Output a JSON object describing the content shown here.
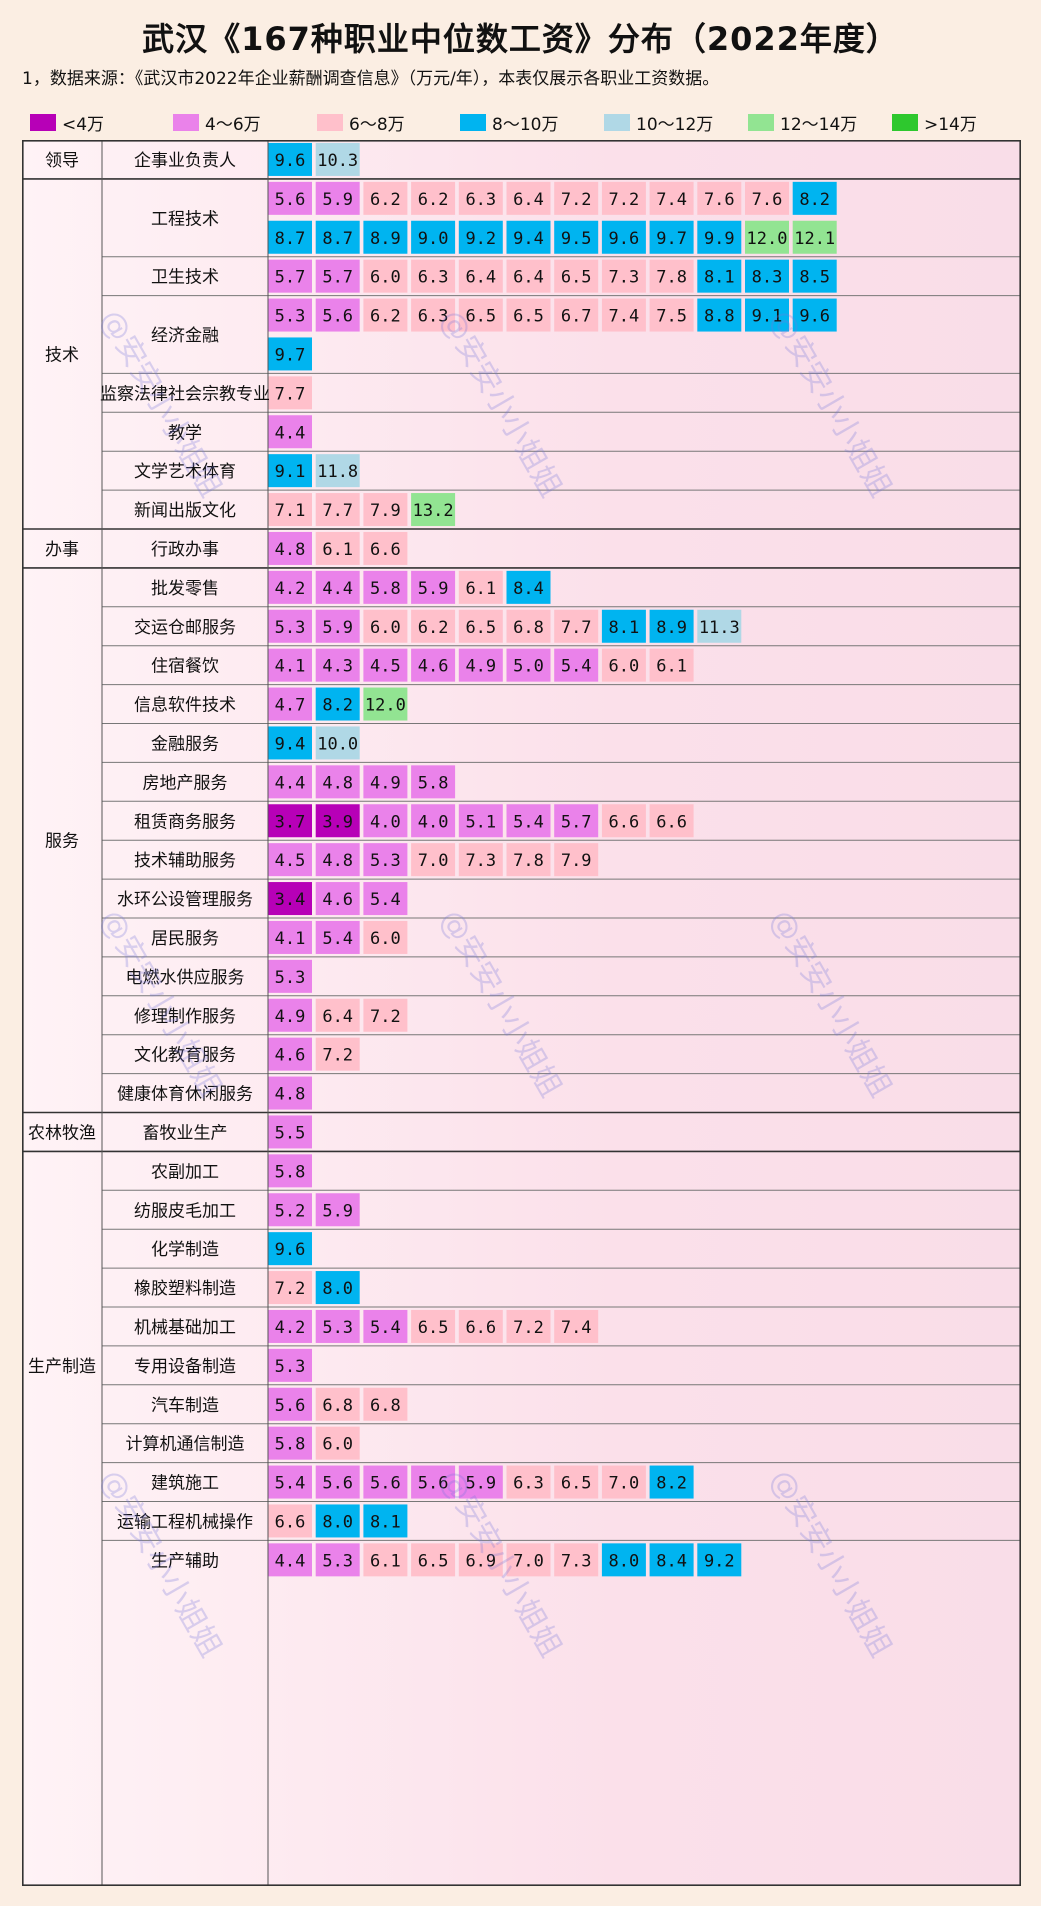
{
  "chart_data": {
    "type": "table",
    "title": "武汉《167种职业中位数工资》分布（2022年度）",
    "note": "1，数据来源：《武汉市2022年企业薪酬调查信息》（万元/年），本表仅展示各职业工资数据。",
    "legend": [
      {
        "label": "<4万",
        "color": "#b700b7"
      },
      {
        "label": "4～6万",
        "color": "#ea82ea"
      },
      {
        "label": "6～8万",
        "color": "#ffc0cb"
      },
      {
        "label": "8～10万",
        "color": "#00b4f0"
      },
      {
        "label": "10～12万",
        "color": "#b0d8e6"
      },
      {
        "label": "12～14万",
        "color": "#92e492"
      },
      {
        "label": ">14万",
        "color": "#2ec82e"
      }
    ],
    "groups": [
      {
        "name": "领导",
        "rows": [
          {
            "name": "企事业负责人",
            "lines": [
              [
                9.6,
                10.3
              ]
            ]
          }
        ]
      },
      {
        "name": "技术",
        "rows": [
          {
            "name": "工程技术",
            "lines": [
              [
                5.6,
                5.9,
                6.2,
                6.2,
                6.3,
                6.4,
                7.2,
                7.2,
                7.4,
                7.6,
                7.6,
                8.2
              ],
              [
                8.7,
                8.7,
                8.9,
                9.0,
                9.2,
                9.4,
                9.5,
                9.6,
                9.7,
                9.9,
                12.0,
                12.1
              ]
            ]
          },
          {
            "name": "卫生技术",
            "lines": [
              [
                5.7,
                5.7,
                6.0,
                6.3,
                6.4,
                6.4,
                6.5,
                7.3,
                7.8,
                8.1,
                8.3,
                8.5
              ]
            ]
          },
          {
            "name": "经济金融",
            "lines": [
              [
                5.3,
                5.6,
                6.2,
                6.3,
                6.5,
                6.5,
                6.7,
                7.4,
                7.5,
                8.8,
                9.1,
                9.6
              ],
              [
                9.7
              ]
            ]
          },
          {
            "name": "监察法律社会宗教专业",
            "lines": [
              [
                7.7
              ]
            ]
          },
          {
            "name": "教学",
            "lines": [
              [
                4.4
              ]
            ]
          },
          {
            "name": "文学艺术体育",
            "lines": [
              [
                9.1,
                11.8
              ]
            ]
          },
          {
            "name": "新闻出版文化",
            "lines": [
              [
                7.1,
                7.7,
                7.9,
                13.2
              ]
            ]
          }
        ]
      },
      {
        "name": "办事",
        "rows": [
          {
            "name": "行政办事",
            "lines": [
              [
                4.8,
                6.1,
                6.6
              ]
            ]
          }
        ]
      },
      {
        "name": "服务",
        "rows": [
          {
            "name": "批发零售",
            "lines": [
              [
                4.2,
                4.4,
                5.8,
                5.9,
                6.1,
                8.4
              ]
            ]
          },
          {
            "name": "交运仓邮服务",
            "lines": [
              [
                5.3,
                5.9,
                6.0,
                6.2,
                6.5,
                6.8,
                7.7,
                8.1,
                8.9,
                11.3
              ]
            ]
          },
          {
            "name": "住宿餐饮",
            "lines": [
              [
                4.1,
                4.3,
                4.5,
                4.6,
                4.9,
                5.0,
                5.4,
                6.0,
                6.1
              ]
            ]
          },
          {
            "name": "信息软件技术",
            "lines": [
              [
                4.7,
                8.2,
                12.0
              ]
            ]
          },
          {
            "name": "金融服务",
            "lines": [
              [
                9.4,
                10.0
              ]
            ]
          },
          {
            "name": "房地产服务",
            "lines": [
              [
                4.4,
                4.8,
                4.9,
                5.8
              ]
            ]
          },
          {
            "name": "租赁商务服务",
            "lines": [
              [
                3.7,
                3.9,
                4.0,
                4.0,
                5.1,
                5.4,
                5.7,
                6.6,
                6.6
              ]
            ]
          },
          {
            "name": "技术辅助服务",
            "lines": [
              [
                4.5,
                4.8,
                5.3,
                7.0,
                7.3,
                7.8,
                7.9
              ]
            ]
          },
          {
            "name": "水环公设管理服务",
            "lines": [
              [
                3.4,
                4.6,
                5.4
              ]
            ]
          },
          {
            "name": "居民服务",
            "lines": [
              [
                4.1,
                5.4,
                6.0
              ]
            ]
          },
          {
            "name": "电燃水供应服务",
            "lines": [
              [
                5.3
              ]
            ]
          },
          {
            "name": "修理制作服务",
            "lines": [
              [
                4.9,
                6.4,
                7.2
              ]
            ]
          },
          {
            "name": "文化教育服务",
            "lines": [
              [
                4.6,
                7.2
              ]
            ]
          },
          {
            "name": "健康体育休闲服务",
            "lines": [
              [
                4.8
              ]
            ]
          }
        ]
      },
      {
        "name": "农林牧渔",
        "rows": [
          {
            "name": "畜牧业生产",
            "lines": [
              [
                5.5
              ]
            ]
          }
        ]
      },
      {
        "name": "生产制造",
        "rows": [
          {
            "name": "农副加工",
            "lines": [
              [
                5.8
              ]
            ]
          },
          {
            "name": "纺服皮毛加工",
            "lines": [
              [
                5.2,
                5.9
              ]
            ]
          },
          {
            "name": "化学制造",
            "lines": [
              [
                9.6
              ]
            ]
          },
          {
            "name": "橡胶塑料制造",
            "lines": [
              [
                7.2,
                8.0
              ]
            ]
          },
          {
            "name": "机械基础加工",
            "lines": [
              [
                4.2,
                5.3,
                5.4,
                6.5,
                6.6,
                7.2,
                7.4
              ]
            ]
          },
          {
            "name": "专用设备制造",
            "lines": [
              [
                5.3
              ]
            ]
          },
          {
            "name": "汽车制造",
            "lines": [
              [
                5.6,
                6.8,
                6.8
              ]
            ]
          },
          {
            "name": "计算机通信制造",
            "lines": [
              [
                5.8,
                6.0
              ]
            ]
          },
          {
            "name": "建筑施工",
            "lines": [
              [
                5.4,
                5.6,
                5.6,
                5.6,
                5.9,
                6.3,
                6.5,
                7.0,
                8.2
              ]
            ]
          },
          {
            "name": "运输工程机械操作",
            "lines": [
              [
                6.6,
                8.0,
                8.1
              ]
            ]
          },
          {
            "name": "生产辅助",
            "lines": [
              [
                4.4,
                5.3,
                6.1,
                6.5,
                6.9,
                7.0,
                7.3,
                8.0,
                8.4,
                9.2
              ]
            ]
          }
        ]
      }
    ],
    "watermark": "@安安小小姐姐"
  }
}
